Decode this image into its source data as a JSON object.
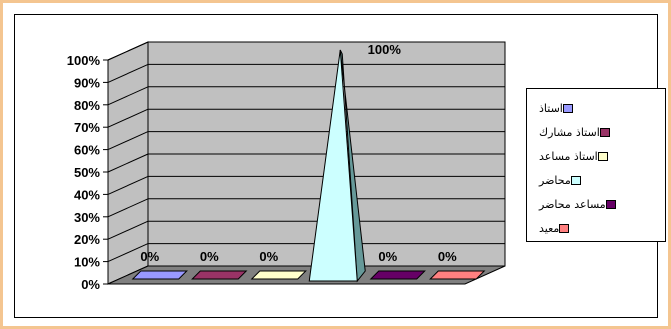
{
  "chart_data": {
    "type": "bar",
    "subtype": "3d-cone",
    "categories": [
      "استاذ",
      "استاذ مشارك",
      "استاذ مساعد",
      "محاضر",
      "مساعد محاضر",
      "معيد"
    ],
    "values": [
      0,
      0,
      0,
      100,
      0,
      0
    ],
    "data_labels": [
      "0%",
      "0%",
      "0%",
      "100%",
      "0%",
      "0%"
    ],
    "colors": [
      "#9999ff",
      "#993366",
      "#ffffcc",
      "#ccffff",
      "#660066",
      "#ff8080"
    ],
    "yticks": [
      "0%",
      "10%",
      "20%",
      "30%",
      "40%",
      "50%",
      "60%",
      "70%",
      "80%",
      "90%",
      "100%"
    ],
    "ylim": [
      0,
      100
    ],
    "grid": true,
    "legend_position": "right",
    "wall_color": "#c0c0c0"
  }
}
